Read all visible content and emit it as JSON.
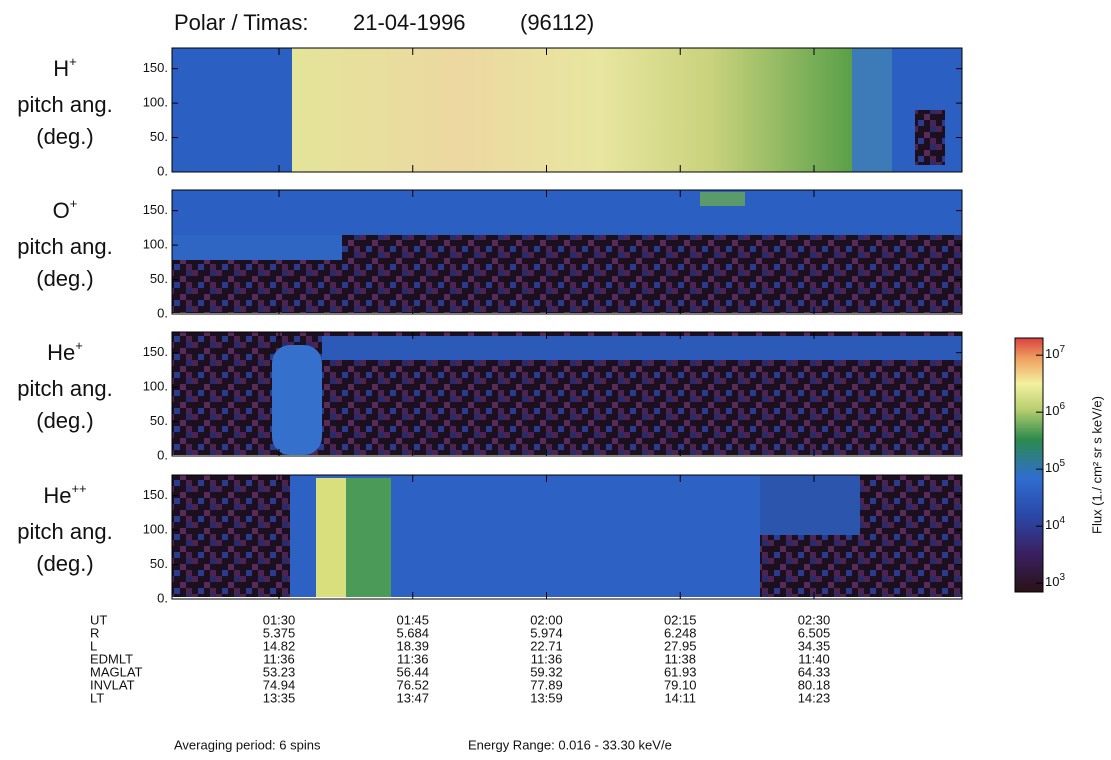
{
  "chart_data": {
    "type": "spectrogram",
    "title": [
      "Polar / Timas:",
      "21-04-1996",
      "(96112)"
    ],
    "panels": [
      {
        "species": "H",
        "charge": "+",
        "ylabel": [
          "pitch ang.",
          "(deg.)"
        ]
      },
      {
        "species": "O",
        "charge": "+",
        "ylabel": [
          "pitch ang.",
          "(deg.)"
        ]
      },
      {
        "species": "He",
        "charge": "+",
        "ylabel": [
          "pitch ang.",
          "(deg.)"
        ]
      },
      {
        "species": "He",
        "charge": "++",
        "ylabel": [
          "pitch ang.",
          "(deg.)"
        ]
      }
    ],
    "ylim": [
      0,
      180
    ],
    "yticks": [
      {
        "value": 0,
        "label": "0."
      },
      {
        "value": 50,
        "label": "50."
      },
      {
        "value": 100,
        "label": "100."
      },
      {
        "value": 150,
        "label": "150."
      }
    ],
    "xlim": [
      78,
      166.6
    ],
    "xticks": [
      {
        "value": 90,
        "label": "01:30"
      },
      {
        "value": 105,
        "label": "01:45"
      },
      {
        "value": 120,
        "label": "02:00"
      },
      {
        "value": 135,
        "label": "02:15"
      },
      {
        "value": 150,
        "label": "02:30"
      }
    ],
    "orbit_table": {
      "time_label": "UT",
      "rows": [
        {
          "name": "R",
          "values": [
            "5.375",
            "5.684",
            "5.974",
            "6.248",
            "6.505"
          ]
        },
        {
          "name": "L",
          "values": [
            "14.82",
            "18.39",
            "22.71",
            "27.95",
            "34.35"
          ]
        },
        {
          "name": "EDMLT",
          "values": [
            "11:36",
            "11:36",
            "11:36",
            "11:38",
            "11:40"
          ]
        },
        {
          "name": "MAGLAT",
          "values": [
            "53.23",
            "56.44",
            "59.32",
            "61.93",
            "64.33"
          ]
        },
        {
          "name": "INVLAT",
          "values": [
            "74.94",
            "76.52",
            "77.89",
            "79.10",
            "80.18"
          ]
        },
        {
          "name": "LT",
          "values": [
            "13:35",
            "13:47",
            "13:59",
            "14:11",
            "14:23"
          ]
        }
      ]
    },
    "colorbar": {
      "label": "Flux (1./ cm² sr s keV/e)",
      "log_scale": true,
      "clim": [
        700,
        20000000
      ],
      "ticks": [
        {
          "value": 1000,
          "label": "10",
          "exponent": "3"
        },
        {
          "value": 10000,
          "label": "10",
          "exponent": "4"
        },
        {
          "value": 100000,
          "label": "10",
          "exponent": "5"
        },
        {
          "value": 1000000,
          "label": "10",
          "exponent": "6"
        },
        {
          "value": 10000000,
          "label": "10",
          "exponent": "7"
        }
      ]
    },
    "footer": [
      "Averaging period: 6 spins",
      "Energy Range: 0.016 - 33.30 keV/e"
    ]
  }
}
